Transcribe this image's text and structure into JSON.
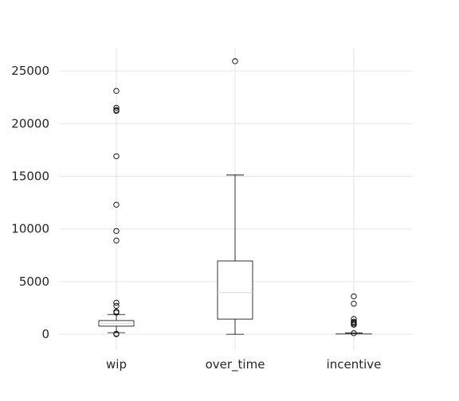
{
  "chart_data": {
    "type": "box",
    "title": "",
    "xlabel": "",
    "ylabel": "",
    "grid": true,
    "ylim": [
      -1500,
      27200
    ],
    "yticks": [
      0,
      5000,
      10000,
      15000,
      20000,
      25000
    ],
    "categories": [
      "wip",
      "over_time",
      "incentive"
    ],
    "boxes": [
      {
        "name": "wip",
        "whisker_low": 150,
        "q1": 770,
        "median": 1040,
        "q3": 1300,
        "whisker_high": 1880,
        "outliers": [
          23100,
          21500,
          21300,
          21200,
          16900,
          12300,
          9800,
          8900,
          3000,
          2700,
          2150,
          2050,
          50,
          10
        ]
      },
      {
        "name": "over_time",
        "whisker_low": 0,
        "q1": 1440,
        "median": 3960,
        "q3": 6960,
        "whisker_high": 15120,
        "outliers": [
          25920
        ]
      },
      {
        "name": "incentive",
        "whisker_low": 0,
        "q1": 0,
        "median": 0,
        "q3": 50,
        "whisker_high": 120,
        "outliers": [
          3600,
          2900,
          1450,
          1200,
          1100,
          1000,
          900,
          100
        ]
      }
    ]
  }
}
